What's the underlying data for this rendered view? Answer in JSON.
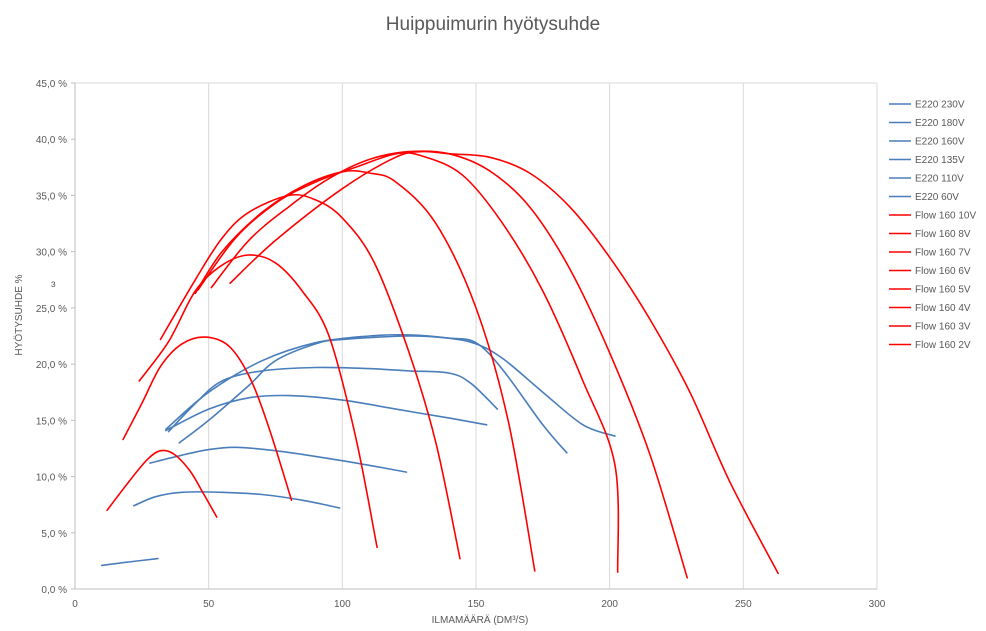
{
  "chart_data": {
    "type": "line",
    "title": "Huippuimurin hyötysuhde",
    "xlabel": "ILMAMÄÄRÄ (DM³/S)",
    "ylabel": "HYÖTYSUHDE %",
    "xlim": [
      0,
      300
    ],
    "ylim": [
      0,
      45
    ],
    "xticks": [
      0,
      50,
      100,
      150,
      200,
      250,
      300
    ],
    "yticks": [
      0,
      5,
      10,
      15,
      20,
      25,
      30,
      35,
      40,
      45
    ],
    "ytick_labels": [
      "0,0 %",
      "5,0 %",
      "10,0 %",
      "15,0 %",
      "20,0 %",
      "25,0 %",
      "30,0 %",
      "35,0 %",
      "40,0 %",
      "45,0 %"
    ],
    "grid": "vertical",
    "legend_position": "right",
    "series": [
      {
        "name": "E220 230V",
        "color": "#4a7ebb",
        "points": [
          [
            34,
            14.2
          ],
          [
            50,
            17.5
          ],
          [
            70,
            20.3
          ],
          [
            90,
            21.9
          ],
          [
            110,
            22.5
          ],
          [
            125,
            22.6
          ],
          [
            140,
            22.3
          ],
          [
            150,
            21.8
          ],
          [
            160,
            20.5
          ],
          [
            175,
            17.5
          ],
          [
            190,
            14.6
          ],
          [
            202,
            13.6
          ]
        ]
      },
      {
        "name": "E220 180V",
        "color": "#4a7ebb",
        "points": [
          [
            39,
            13.0
          ],
          [
            50,
            15.0
          ],
          [
            65,
            18.1
          ],
          [
            75,
            20.3
          ],
          [
            90,
            21.8
          ],
          [
            100,
            22.2
          ],
          [
            125,
            22.5
          ],
          [
            140,
            22.3
          ],
          [
            150,
            21.9
          ],
          [
            160,
            19.5
          ],
          [
            175,
            14.6
          ],
          [
            184,
            12.1
          ]
        ]
      },
      {
        "name": "E220 160V",
        "color": "#4a7ebb",
        "points": [
          [
            35,
            14.0
          ],
          [
            45,
            16.5
          ],
          [
            55,
            18.5
          ],
          [
            70,
            19.4
          ],
          [
            90,
            19.7
          ],
          [
            110,
            19.6
          ],
          [
            125,
            19.4
          ],
          [
            140,
            19.2
          ],
          [
            148,
            18.3
          ],
          [
            158,
            16.0
          ]
        ]
      },
      {
        "name": "E220 135V",
        "color": "#4a7ebb",
        "points": [
          [
            34,
            14.1
          ],
          [
            50,
            16.0
          ],
          [
            65,
            17.0
          ],
          [
            80,
            17.2
          ],
          [
            100,
            16.8
          ],
          [
            120,
            16.0
          ],
          [
            140,
            15.2
          ],
          [
            154,
            14.6
          ]
        ]
      },
      {
        "name": "E220 110V",
        "color": "#4a7ebb",
        "points": [
          [
            28,
            11.2
          ],
          [
            40,
            11.9
          ],
          [
            50,
            12.4
          ],
          [
            60,
            12.6
          ],
          [
            75,
            12.3
          ],
          [
            95,
            11.6
          ],
          [
            110,
            11.0
          ],
          [
            124,
            10.4
          ]
        ]
      },
      {
        "name": "E220 60V",
        "color": "#4a7ebb",
        "points": [
          [
            22,
            7.4
          ],
          [
            30,
            8.2
          ],
          [
            40,
            8.6
          ],
          [
            55,
            8.6
          ],
          [
            70,
            8.4
          ],
          [
            85,
            7.9
          ],
          [
            99,
            7.2
          ]
        ]
      },
      {
        "name": "",
        "color": "#4a7ebb",
        "points": [
          [
            10,
            2.1
          ],
          [
            20,
            2.4
          ],
          [
            31,
            2.7
          ]
        ]
      },
      {
        "name": "Flow 160 10V",
        "color": "#ff0000",
        "points": [
          [
            58,
            27.2
          ],
          [
            75,
            31.0
          ],
          [
            100,
            35.6
          ],
          [
            120,
            38.4
          ],
          [
            130,
            38.9
          ],
          [
            140,
            38.7
          ],
          [
            155,
            38.4
          ],
          [
            170,
            37.0
          ],
          [
            185,
            34.0
          ],
          [
            200,
            29.5
          ],
          [
            215,
            24.0
          ],
          [
            230,
            17.5
          ],
          [
            245,
            9.5
          ],
          [
            263,
            1.4
          ]
        ]
      },
      {
        "name": "Flow 160 8V",
        "color": "#ff0000",
        "points": [
          [
            51,
            26.8
          ],
          [
            65,
            31.0
          ],
          [
            80,
            34.0
          ],
          [
            95,
            36.5
          ],
          [
            110,
            38.2
          ],
          [
            125,
            38.9
          ],
          [
            140,
            38.7
          ],
          [
            155,
            37.2
          ],
          [
            170,
            34.0
          ],
          [
            185,
            28.5
          ],
          [
            200,
            21.0
          ],
          [
            215,
            12.0
          ],
          [
            229,
            1.0
          ]
        ]
      },
      {
        "name": "Flow 160 7V",
        "color": "#ff0000",
        "points": [
          [
            46,
            26.6
          ],
          [
            60,
            31.2
          ],
          [
            75,
            34.3
          ],
          [
            90,
            36.2
          ],
          [
            105,
            37.5
          ],
          [
            120,
            38.7
          ],
          [
            130,
            38.5
          ],
          [
            145,
            36.8
          ],
          [
            160,
            32.5
          ],
          [
            175,
            26.5
          ],
          [
            190,
            18.5
          ],
          [
            202,
            11.0
          ],
          [
            203,
            1.5
          ]
        ]
      },
      {
        "name": "Flow 160 6V",
        "color": "#ff0000",
        "points": [
          [
            45,
            26.3
          ],
          [
            55,
            30.0
          ],
          [
            70,
            33.5
          ],
          [
            85,
            35.8
          ],
          [
            100,
            37.1
          ],
          [
            110,
            37.0
          ],
          [
            120,
            36.2
          ],
          [
            135,
            32.5
          ],
          [
            150,
            25.0
          ],
          [
            162,
            15.0
          ],
          [
            172,
            1.6
          ]
        ]
      },
      {
        "name": "Flow 160 5V",
        "color": "#ff0000",
        "points": [
          [
            32,
            22.2
          ],
          [
            45,
            27.5
          ],
          [
            55,
            31.2
          ],
          [
            65,
            33.5
          ],
          [
            80,
            35.0
          ],
          [
            90,
            34.6
          ],
          [
            100,
            33.0
          ],
          [
            112,
            29.0
          ],
          [
            125,
            21.0
          ],
          [
            135,
            13.0
          ],
          [
            144,
            2.7
          ]
        ]
      },
      {
        "name": "Flow 160 4V",
        "color": "#ff0000",
        "points": [
          [
            24,
            18.5
          ],
          [
            35,
            22.0
          ],
          [
            45,
            26.5
          ],
          [
            55,
            28.8
          ],
          [
            65,
            29.7
          ],
          [
            75,
            29.0
          ],
          [
            85,
            26.5
          ],
          [
            95,
            22.5
          ],
          [
            105,
            13.5
          ],
          [
            113,
            3.7
          ]
        ]
      },
      {
        "name": "Flow 160 3V",
        "color": "#ff0000",
        "points": [
          [
            18,
            13.3
          ],
          [
            25,
            16.5
          ],
          [
            32,
            19.8
          ],
          [
            40,
            21.8
          ],
          [
            49,
            22.4
          ],
          [
            58,
            21.5
          ],
          [
            66,
            18.5
          ],
          [
            73,
            14.0
          ],
          [
            81,
            7.9
          ]
        ]
      },
      {
        "name": "Flow 160 2V",
        "color": "#ff0000",
        "points": [
          [
            12,
            7.0
          ],
          [
            20,
            9.5
          ],
          [
            27,
            11.5
          ],
          [
            32,
            12.3
          ],
          [
            37,
            12.0
          ],
          [
            43,
            10.5
          ],
          [
            48,
            8.5
          ],
          [
            53,
            6.4
          ]
        ]
      }
    ]
  },
  "side_mark": "ɜ"
}
